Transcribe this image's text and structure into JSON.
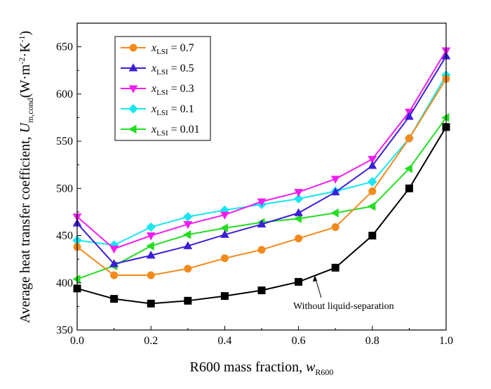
{
  "chart_data": {
    "type": "line",
    "xlabel_main": "R600 mass fraction, ",
    "xlabel_var": "w",
    "xlabel_sub": "R600",
    "ylabel_main": "Average heat transfer coefficient, ",
    "ylabel_var": "U",
    "ylabel_sub": "m,cond",
    "ylabel_unit_open": "(W·m",
    "ylabel_unit_exp1": "-2",
    "ylabel_unit_mid": "·K",
    "ylabel_unit_exp2": "-1",
    "ylabel_unit_close": ")",
    "xlim": [
      0.0,
      1.0
    ],
    "ylim": [
      350,
      675
    ],
    "x_ticks": [
      "0.0",
      "0.2",
      "0.4",
      "0.6",
      "0.8",
      "1.0"
    ],
    "y_ticks": [
      "350",
      "400",
      "450",
      "500",
      "550",
      "600",
      "650"
    ],
    "x": [
      0.0,
      0.1,
      0.2,
      0.3,
      0.4,
      0.5,
      0.6,
      0.7,
      0.8,
      0.9,
      1.0
    ],
    "legend_position": "top-left",
    "legend_var": "x",
    "legend_sub": "LSI",
    "series": [
      {
        "name": " = 0.7",
        "color": "#f28a1c",
        "marker": "circle",
        "values": [
          438,
          408,
          408,
          415,
          426,
          435,
          447,
          459,
          497,
          553,
          616
        ]
      },
      {
        "name": " = 0.5",
        "color": "#3b1fd8",
        "marker": "triangle-up",
        "values": [
          463,
          420,
          429,
          439,
          451,
          462,
          474,
          496,
          524,
          576,
          640
        ]
      },
      {
        "name": " = 0.3",
        "color": "#f01df0",
        "marker": "triangle-down",
        "values": [
          470,
          436,
          450,
          462,
          472,
          486,
          496,
          510,
          531,
          581,
          646
        ]
      },
      {
        "name": " = 0.1",
        "color": "#19e6f0",
        "marker": "diamond",
        "values": [
          445,
          440,
          459,
          470,
          477,
          483,
          489,
          497,
          507,
          553,
          620
        ]
      },
      {
        "name": " = 0.01",
        "color": "#22dd22",
        "marker": "triangle-left",
        "values": [
          404,
          418,
          439,
          451,
          458,
          464,
          468,
          474,
          481,
          521,
          575
        ]
      },
      {
        "name": "",
        "color": "#000000",
        "marker": "square",
        "values": [
          394,
          383,
          378,
          381,
          386,
          392,
          401,
          416,
          450,
          500,
          565
        ]
      }
    ],
    "annotation": "Without liquid-separation"
  }
}
